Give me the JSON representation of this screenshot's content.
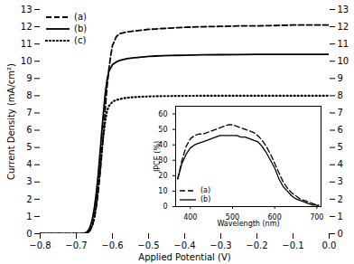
{
  "chart_data": [
    {
      "type": "line",
      "xlabel": "Applied Potential (V)",
      "ylabel": "Current Density (mA/cm²)",
      "xlim": [
        -0.8,
        0.0
      ],
      "ylim": [
        0,
        13
      ],
      "xticks": [
        -0.8,
        -0.7,
        -0.6,
        -0.5,
        -0.4,
        -0.3,
        -0.2,
        -0.1,
        {
          "value": 0.0,
          "label": "0.0"
        }
      ],
      "yticks": [
        0,
        1,
        2,
        3,
        4,
        5,
        6,
        7,
        8,
        9,
        10,
        11,
        12,
        13
      ],
      "y2lim": [
        0,
        13
      ],
      "y2ticks": [
        0,
        1,
        2,
        3,
        4,
        5,
        6,
        7,
        8,
        9,
        10,
        11,
        12,
        13
      ],
      "legend": "upper left",
      "series": [
        {
          "name": "(a)",
          "color": "black",
          "line_style": "dashed",
          "x": [
            -0.8,
            -0.75,
            -0.72,
            -0.7,
            -0.69,
            -0.685,
            -0.68,
            -0.675,
            -0.67,
            -0.665,
            -0.66,
            -0.655,
            -0.65,
            -0.645,
            -0.64,
            -0.635,
            -0.63,
            -0.625,
            -0.62,
            -0.615,
            -0.61,
            -0.605,
            -0.6,
            -0.59,
            -0.58,
            -0.57,
            -0.56,
            -0.55,
            -0.54,
            -0.53,
            -0.52,
            -0.51,
            -0.5,
            -0.48,
            -0.46,
            -0.44,
            -0.42,
            -0.4,
            -0.35,
            -0.3,
            -0.25,
            -0.2,
            -0.15,
            -0.1,
            -0.05,
            0.0
          ],
          "values": [
            0.0,
            0.0,
            0.0,
            0.0,
            0.0,
            0.0,
            0.0,
            0.02,
            0.05,
            0.12,
            0.25,
            0.5,
            0.9,
            1.5,
            2.3,
            3.3,
            4.5,
            5.8,
            7.2,
            8.5,
            9.5,
            10.3,
            10.9,
            11.4,
            11.6,
            11.65,
            11.7,
            11.72,
            11.75,
            11.78,
            11.8,
            11.82,
            11.85,
            11.87,
            11.9,
            11.92,
            11.95,
            11.97,
            12.0,
            12.02,
            12.05,
            12.05,
            12.07,
            12.1,
            12.1,
            12.1
          ]
        },
        {
          "name": "(b)",
          "color": "black",
          "line_style": "solid",
          "x": [
            -0.8,
            -0.75,
            -0.72,
            -0.71,
            -0.7,
            -0.695,
            -0.69,
            -0.685,
            -0.68,
            -0.675,
            -0.67,
            -0.665,
            -0.66,
            -0.655,
            -0.65,
            -0.645,
            -0.64,
            -0.635,
            -0.63,
            -0.625,
            -0.62,
            -0.615,
            -0.61,
            -0.6,
            -0.59,
            -0.58,
            -0.57,
            -0.56,
            -0.55,
            -0.54,
            -0.53,
            -0.52,
            -0.51,
            -0.5,
            -0.48,
            -0.46,
            -0.44,
            -0.42,
            -0.4,
            -0.35,
            -0.3,
            -0.25,
            -0.2,
            -0.15,
            -0.1,
            -0.05,
            0.0
          ],
          "values": [
            0.0,
            0.0,
            0.0,
            0.0,
            0.0,
            0.0,
            0.0,
            0.0,
            0.02,
            0.05,
            0.12,
            0.25,
            0.5,
            0.9,
            1.5,
            2.3,
            3.3,
            4.5,
            5.8,
            7.0,
            8.1,
            8.9,
            9.4,
            9.8,
            9.95,
            10.05,
            10.1,
            10.15,
            10.18,
            10.2,
            10.22,
            10.24,
            10.26,
            10.28,
            10.3,
            10.32,
            10.33,
            10.34,
            10.35,
            10.37,
            10.38,
            10.39,
            10.4,
            10.4,
            10.4,
            10.4,
            10.4
          ]
        },
        {
          "name": "(c)",
          "color": "black",
          "line_style": "dotted",
          "x": [
            -0.8,
            -0.75,
            -0.72,
            -0.71,
            -0.7,
            -0.695,
            -0.69,
            -0.685,
            -0.68,
            -0.675,
            -0.67,
            -0.665,
            -0.66,
            -0.655,
            -0.65,
            -0.645,
            -0.64,
            -0.635,
            -0.63,
            -0.625,
            -0.62,
            -0.615,
            -0.61,
            -0.6,
            -0.59,
            -0.58,
            -0.57,
            -0.56,
            -0.55,
            -0.54,
            -0.53,
            -0.52,
            -0.51,
            -0.5,
            -0.48,
            -0.46,
            -0.44,
            -0.42,
            -0.4,
            -0.35,
            -0.3,
            -0.25,
            -0.2,
            -0.15,
            -0.1,
            -0.05,
            0.0
          ],
          "values": [
            0.0,
            0.0,
            0.0,
            0.0,
            0.0,
            0.0,
            0.0,
            0.0,
            0.0,
            0.02,
            0.05,
            0.12,
            0.28,
            0.55,
            1.0,
            1.7,
            2.6,
            3.6,
            4.7,
            5.7,
            6.5,
            7.1,
            7.4,
            7.65,
            7.75,
            7.8,
            7.85,
            7.88,
            7.9,
            7.92,
            7.93,
            7.94,
            7.95,
            7.96,
            7.97,
            7.98,
            7.98,
            7.99,
            7.99,
            8.0,
            8.0,
            8.0,
            8.0,
            8.0,
            8.0,
            8.0,
            8.0
          ]
        }
      ]
    },
    {
      "type": "line",
      "xlabel": "Wavelength (nm)",
      "ylabel": "IPCE (%)",
      "xlim": [
        365,
        710
      ],
      "ylim": [
        0,
        65
      ],
      "xticks": [
        400,
        500,
        600,
        700
      ],
      "yticks": [
        0,
        10,
        20,
        30,
        40,
        50,
        60
      ],
      "legend": "lower left",
      "x": [
        370,
        380,
        390,
        400,
        410,
        420,
        430,
        440,
        450,
        460,
        470,
        480,
        490,
        500,
        510,
        520,
        530,
        540,
        550,
        560,
        570,
        580,
        590,
        600,
        610,
        620,
        630,
        640,
        650,
        660,
        670,
        680,
        690,
        700,
        705
      ],
      "series": [
        {
          "name": "(a)",
          "color": "black",
          "line_style": "dashed",
          "values": [
            18,
            30,
            39,
            44,
            46,
            47,
            47,
            48,
            49,
            50,
            51,
            52,
            53,
            53,
            52,
            51,
            50,
            49,
            48,
            46,
            43,
            39,
            34,
            28,
            22,
            16,
            12,
            9,
            7,
            5,
            4,
            3,
            2,
            1,
            1
          ]
        },
        {
          "name": "(b)",
          "color": "black",
          "line_style": "solid",
          "values": [
            18,
            28,
            34,
            38,
            40,
            41,
            42,
            43,
            44,
            45,
            46,
            46,
            46,
            46,
            46,
            45,
            45,
            44,
            43,
            42,
            39,
            35,
            30,
            25,
            18,
            13,
            10,
            7,
            5,
            4,
            3,
            2,
            1,
            1,
            0
          ]
        }
      ]
    }
  ]
}
